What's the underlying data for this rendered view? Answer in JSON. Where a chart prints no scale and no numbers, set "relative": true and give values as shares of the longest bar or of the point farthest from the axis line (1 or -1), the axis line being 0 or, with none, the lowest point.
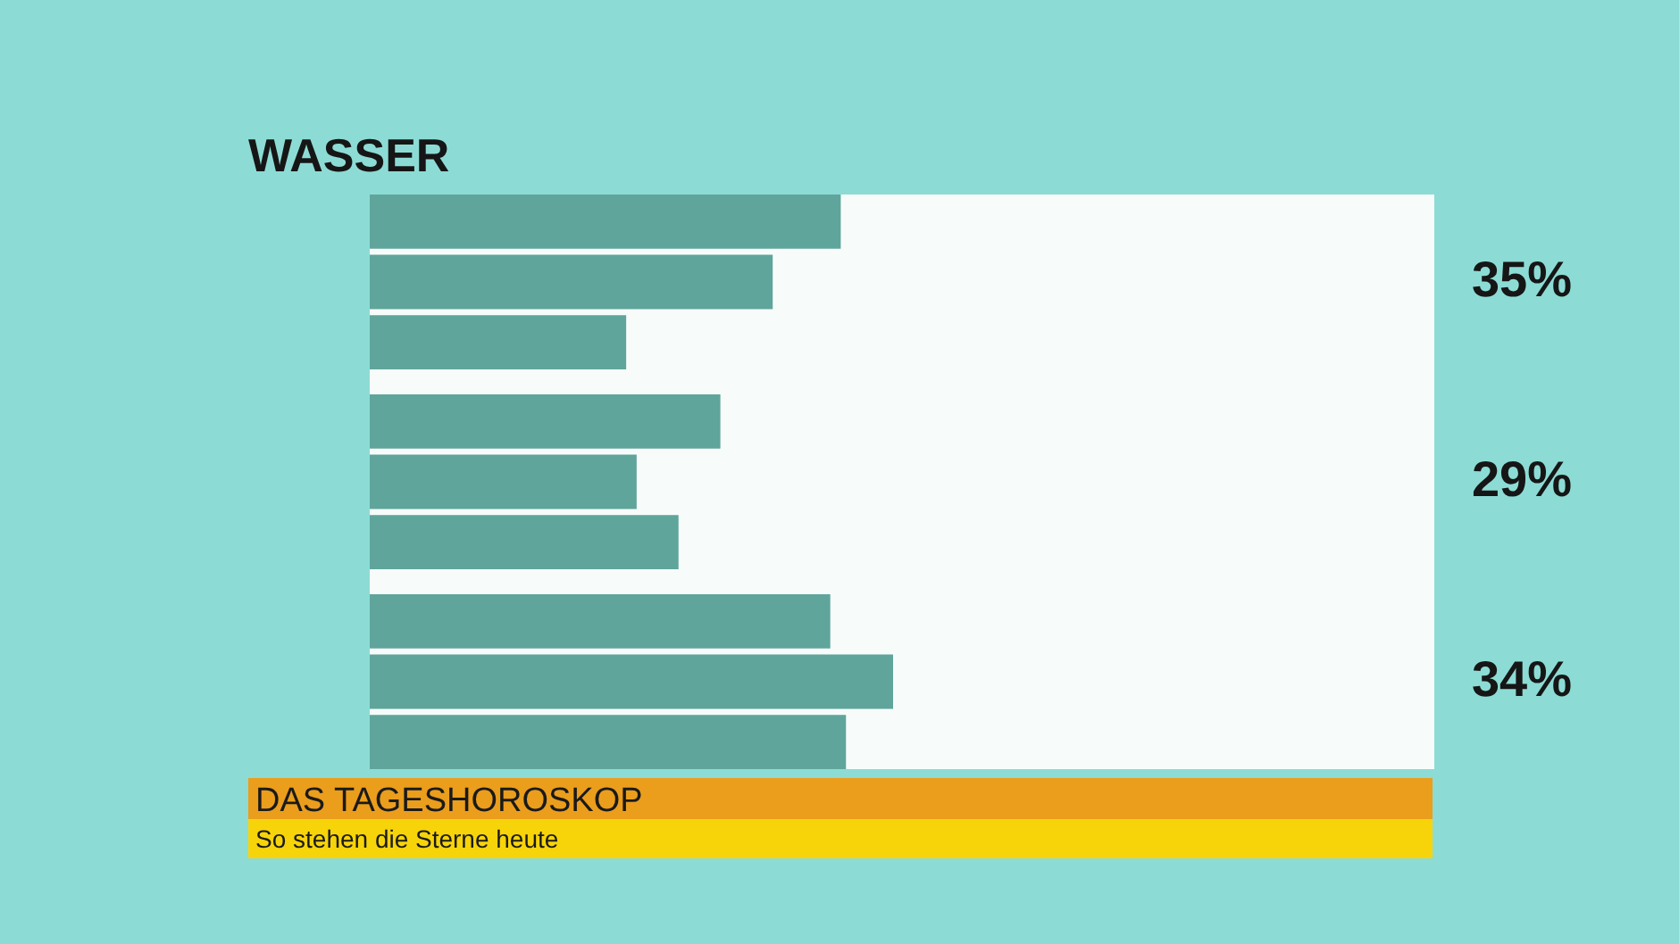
{
  "chart_data": {
    "type": "bar",
    "orientation": "horizontal",
    "relative": true,
    "title": "WASSER",
    "categories": [
      null,
      null,
      null
    ],
    "series": [
      {
        "color": "#5fa59b",
        "values": [
          0.9,
          0.67,
          0.88
        ]
      },
      {
        "color": "#5fa59b",
        "values": [
          0.77,
          0.51,
          1.0
        ]
      },
      {
        "color": "#5fa59b",
        "values": [
          0.49,
          0.59,
          0.91
        ]
      }
    ],
    "annotations": [
      {
        "text": "35%"
      },
      {
        "text": "29%"
      },
      {
        "text": "34%"
      },
      "DAS TAGESHOROSKOP",
      "So stehen die Sterne heute"
    ]
  }
}
